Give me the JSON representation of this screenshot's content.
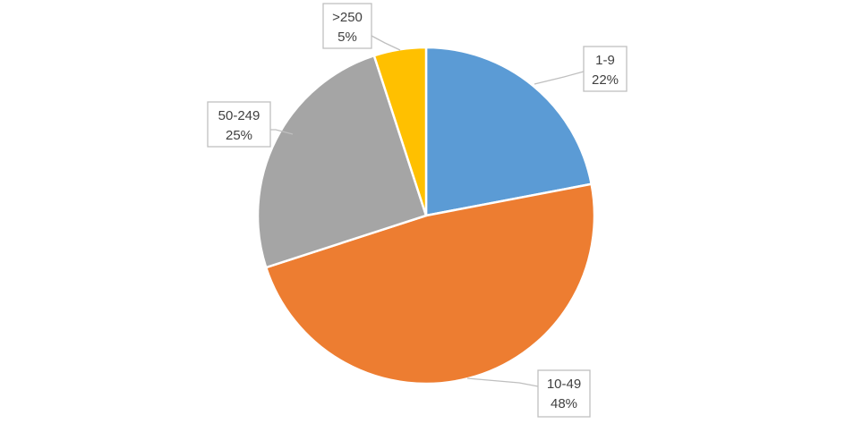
{
  "chart_data": {
    "type": "pie",
    "title": "",
    "legend": "none",
    "slices": [
      {
        "label": "1-9",
        "value": 22,
        "value_label": "22%",
        "color": "#5B9BD5"
      },
      {
        "label": "10-49",
        "value": 48,
        "value_label": "48%",
        "color": "#ED7D31"
      },
      {
        "label": "50-249",
        "value": 25,
        "value_label": "25%",
        "color": "#A5A5A5"
      },
      {
        "label": ">250",
        "value": 5,
        "value_label": "5%",
        "color": "#FFC000"
      }
    ]
  }
}
